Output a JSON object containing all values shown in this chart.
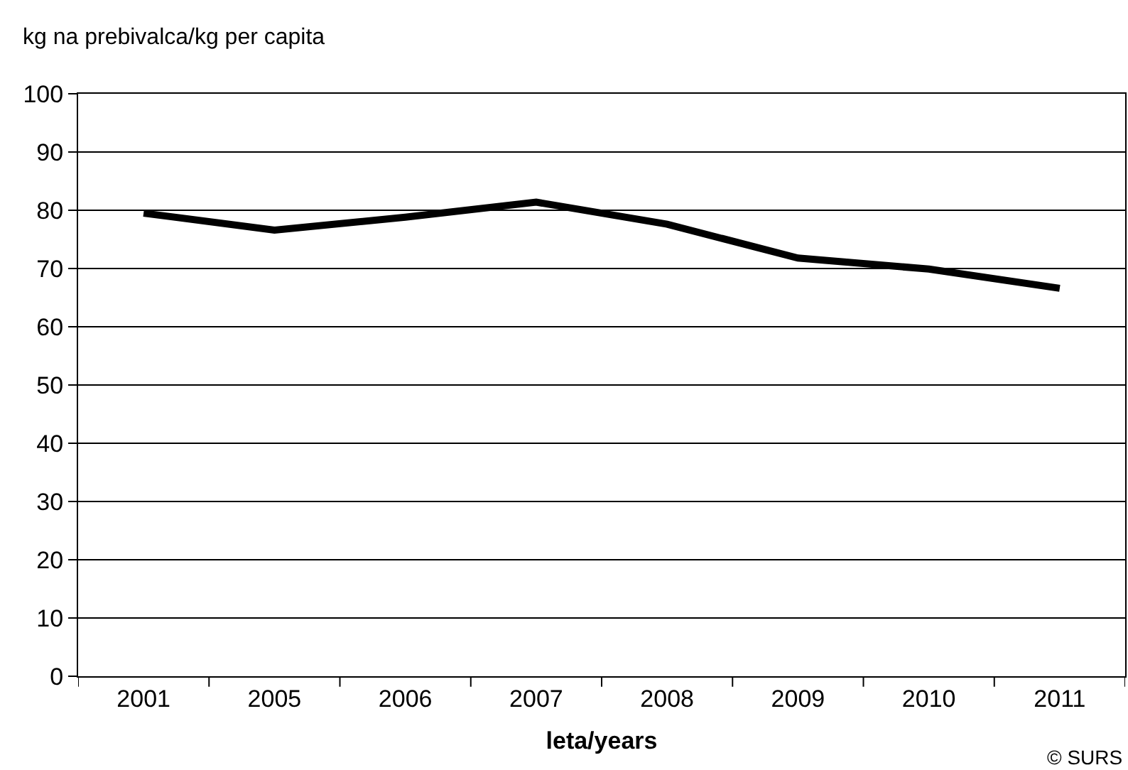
{
  "chart_data": {
    "type": "line",
    "ylabel": "kg na prebivalca/kg per capita",
    "xlabel": "leta/years",
    "categories": [
      "2001",
      "2005",
      "2006",
      "2007",
      "2008",
      "2009",
      "2010",
      "2011"
    ],
    "series": [
      {
        "color": "#000000",
        "values": [
          79.5,
          76.6,
          78.8,
          81.4,
          77.6,
          71.8,
          69.9,
          66.6
        ]
      }
    ],
    "ylim": [
      0,
      100
    ],
    "yticks": [
      0,
      10,
      20,
      30,
      40,
      50,
      60,
      70,
      80,
      90,
      100
    ],
    "grid": "y",
    "marker": "none",
    "line_style": "solid",
    "annotations": [
      "© SURS"
    ]
  }
}
